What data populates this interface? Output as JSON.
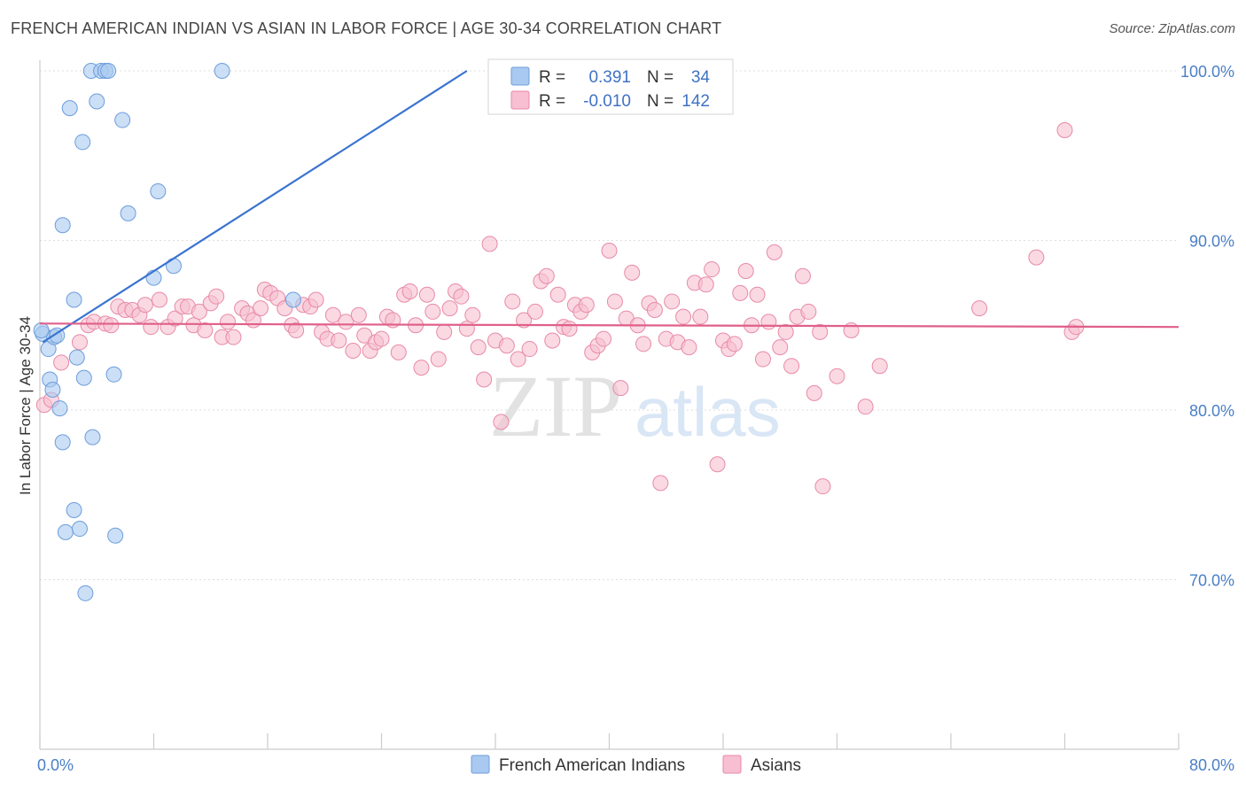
{
  "title": "FRENCH AMERICAN INDIAN VS ASIAN IN LABOR FORCE | AGE 30-34 CORRELATION CHART",
  "source": "Source: ZipAtlas.com",
  "watermark": {
    "zip": "ZIP",
    "atlas": "atlas"
  },
  "legend": {
    "rows": [
      {
        "r_label": "R =",
        "r_value": "0.391",
        "n_label": "N =",
        "n_value": "34",
        "color": "#a9c9f0",
        "stroke": "#6d9ddc"
      },
      {
        "r_label": "R =",
        "r_value": "-0.010",
        "n_label": "N =",
        "n_value": "142",
        "color": "#f7bfd1",
        "stroke": "#e88aa8"
      }
    ]
  },
  "chart_data": {
    "type": "scatter",
    "title": "FRENCH AMERICAN INDIAN VS ASIAN IN LABOR FORCE | AGE 30-34 CORRELATION CHART",
    "xlabel": "",
    "ylabel": "In Labor Force | Age 30-34",
    "xlim": [
      0,
      80
    ],
    "ylim": [
      60,
      100
    ],
    "x_tick_labels": [
      "0.0%",
      "80.0%"
    ],
    "y_ticks": [
      {
        "value": 70,
        "label": "70.0%"
      },
      {
        "value": 80,
        "label": "80.0%"
      },
      {
        "value": 90,
        "label": "90.0%"
      },
      {
        "value": 100,
        "label": "100.0%"
      }
    ],
    "grid": true,
    "legend_position": "top-center",
    "series": [
      {
        "name": "French American Indians",
        "color": "#a9c9f0",
        "stroke": "#6d9ddc",
        "line_color": "#3a74d0",
        "trend": {
          "x": [
            0.2,
            30.0
          ],
          "y": [
            84.0,
            100.0
          ]
        },
        "points": [
          [
            0.2,
            84.5
          ],
          [
            0.6,
            83.6
          ],
          [
            0.7,
            81.8
          ],
          [
            0.9,
            81.2
          ],
          [
            1.0,
            84.3
          ],
          [
            1.2,
            84.4
          ],
          [
            1.4,
            80.1
          ],
          [
            1.6,
            78.1
          ],
          [
            1.6,
            90.9
          ],
          [
            1.8,
            72.8
          ],
          [
            2.1,
            97.8
          ],
          [
            2.4,
            74.1
          ],
          [
            2.4,
            86.5
          ],
          [
            2.6,
            83.1
          ],
          [
            2.8,
            73.0
          ],
          [
            3.0,
            95.8
          ],
          [
            3.1,
            81.9
          ],
          [
            3.2,
            69.2
          ],
          [
            3.6,
            100.0
          ],
          [
            3.7,
            78.4
          ],
          [
            4.0,
            98.2
          ],
          [
            4.3,
            100.0
          ],
          [
            4.6,
            100.0
          ],
          [
            4.8,
            100.0
          ],
          [
            5.2,
            82.1
          ],
          [
            5.3,
            72.6
          ],
          [
            5.8,
            97.1
          ],
          [
            6.2,
            91.6
          ],
          [
            8.0,
            87.8
          ],
          [
            8.3,
            92.9
          ],
          [
            9.4,
            88.5
          ],
          [
            12.8,
            100.0
          ],
          [
            17.8,
            86.5
          ],
          [
            0.1,
            84.7
          ]
        ]
      },
      {
        "name": "Asians",
        "color": "#f7bfd1",
        "stroke": "#e88aa8",
        "line_color": "#e0608a",
        "trend": {
          "x": [
            0.0,
            80.0
          ],
          "y": [
            85.1,
            84.9
          ]
        },
        "points": [
          [
            0.3,
            80.3
          ],
          [
            0.8,
            80.6
          ],
          [
            1.5,
            82.8
          ],
          [
            2.8,
            84.0
          ],
          [
            3.4,
            85.0
          ],
          [
            3.8,
            85.2
          ],
          [
            4.6,
            85.1
          ],
          [
            5.0,
            85.0
          ],
          [
            5.5,
            86.1
          ],
          [
            6.0,
            85.9
          ],
          [
            6.5,
            85.9
          ],
          [
            7.0,
            85.6
          ],
          [
            7.4,
            86.2
          ],
          [
            7.8,
            84.9
          ],
          [
            8.4,
            86.5
          ],
          [
            9.0,
            84.9
          ],
          [
            9.5,
            85.4
          ],
          [
            10.0,
            86.1
          ],
          [
            10.4,
            86.1
          ],
          [
            10.8,
            85.0
          ],
          [
            11.2,
            85.8
          ],
          [
            11.6,
            84.7
          ],
          [
            12.0,
            86.3
          ],
          [
            12.4,
            86.7
          ],
          [
            12.8,
            84.3
          ],
          [
            13.2,
            85.2
          ],
          [
            13.6,
            84.3
          ],
          [
            14.2,
            86.0
          ],
          [
            14.6,
            85.7
          ],
          [
            15.0,
            85.3
          ],
          [
            15.5,
            86.0
          ],
          [
            15.8,
            87.1
          ],
          [
            16.2,
            86.9
          ],
          [
            16.7,
            86.6
          ],
          [
            17.2,
            86.0
          ],
          [
            17.7,
            85.0
          ],
          [
            18.0,
            84.7
          ],
          [
            18.5,
            86.2
          ],
          [
            19.0,
            86.1
          ],
          [
            19.4,
            86.5
          ],
          [
            19.8,
            84.6
          ],
          [
            20.2,
            84.2
          ],
          [
            20.6,
            85.6
          ],
          [
            21.0,
            84.1
          ],
          [
            21.5,
            85.2
          ],
          [
            22.0,
            83.5
          ],
          [
            22.4,
            85.6
          ],
          [
            22.8,
            84.4
          ],
          [
            23.2,
            83.5
          ],
          [
            23.6,
            84.0
          ],
          [
            24.0,
            84.2
          ],
          [
            24.4,
            85.5
          ],
          [
            24.8,
            85.3
          ],
          [
            25.2,
            83.4
          ],
          [
            25.6,
            86.8
          ],
          [
            26.0,
            87.0
          ],
          [
            26.4,
            85.0
          ],
          [
            26.8,
            82.5
          ],
          [
            27.2,
            86.8
          ],
          [
            27.6,
            85.8
          ],
          [
            28.0,
            83.0
          ],
          [
            28.4,
            84.6
          ],
          [
            28.8,
            86.0
          ],
          [
            29.2,
            87.0
          ],
          [
            29.6,
            86.7
          ],
          [
            30.0,
            84.8
          ],
          [
            30.4,
            85.6
          ],
          [
            30.8,
            83.7
          ],
          [
            31.2,
            81.8
          ],
          [
            31.6,
            89.8
          ],
          [
            32.0,
            84.1
          ],
          [
            32.4,
            79.3
          ],
          [
            32.8,
            83.8
          ],
          [
            33.2,
            86.4
          ],
          [
            33.6,
            83.0
          ],
          [
            34.0,
            85.3
          ],
          [
            34.4,
            83.6
          ],
          [
            34.8,
            85.8
          ],
          [
            35.2,
            87.6
          ],
          [
            35.6,
            87.9
          ],
          [
            36.0,
            84.1
          ],
          [
            36.4,
            86.8
          ],
          [
            36.8,
            84.9
          ],
          [
            37.2,
            84.8
          ],
          [
            37.6,
            86.2
          ],
          [
            38.0,
            85.8
          ],
          [
            38.4,
            86.2
          ],
          [
            38.8,
            83.4
          ],
          [
            39.2,
            83.8
          ],
          [
            39.6,
            84.2
          ],
          [
            40.0,
            89.4
          ],
          [
            40.4,
            86.4
          ],
          [
            40.8,
            81.3
          ],
          [
            41.2,
            85.4
          ],
          [
            41.6,
            88.1
          ],
          [
            42.0,
            85.0
          ],
          [
            42.4,
            83.9
          ],
          [
            42.8,
            86.3
          ],
          [
            43.2,
            85.9
          ],
          [
            43.6,
            75.7
          ],
          [
            44.0,
            84.2
          ],
          [
            44.4,
            86.4
          ],
          [
            44.8,
            84.0
          ],
          [
            45.2,
            85.5
          ],
          [
            45.6,
            83.7
          ],
          [
            46.0,
            87.5
          ],
          [
            46.4,
            85.5
          ],
          [
            46.8,
            87.4
          ],
          [
            47.2,
            88.3
          ],
          [
            47.6,
            76.8
          ],
          [
            48.0,
            84.1
          ],
          [
            48.4,
            83.6
          ],
          [
            48.8,
            83.9
          ],
          [
            49.2,
            86.9
          ],
          [
            49.6,
            88.2
          ],
          [
            50.0,
            85.0
          ],
          [
            50.4,
            86.8
          ],
          [
            50.8,
            83.0
          ],
          [
            51.2,
            85.2
          ],
          [
            51.6,
            89.3
          ],
          [
            52.0,
            83.7
          ],
          [
            52.4,
            84.6
          ],
          [
            52.8,
            82.6
          ],
          [
            53.2,
            85.5
          ],
          [
            53.6,
            87.9
          ],
          [
            54.0,
            85.8
          ],
          [
            54.4,
            81.0
          ],
          [
            54.8,
            84.6
          ],
          [
            55.0,
            75.5
          ],
          [
            56.0,
            82.0
          ],
          [
            57.0,
            84.7
          ],
          [
            58.0,
            80.2
          ],
          [
            59.0,
            82.6
          ],
          [
            66.0,
            86.0
          ],
          [
            70.0,
            89.0
          ],
          [
            72.0,
            96.5
          ],
          [
            72.5,
            84.6
          ],
          [
            72.8,
            84.9
          ]
        ]
      }
    ]
  }
}
